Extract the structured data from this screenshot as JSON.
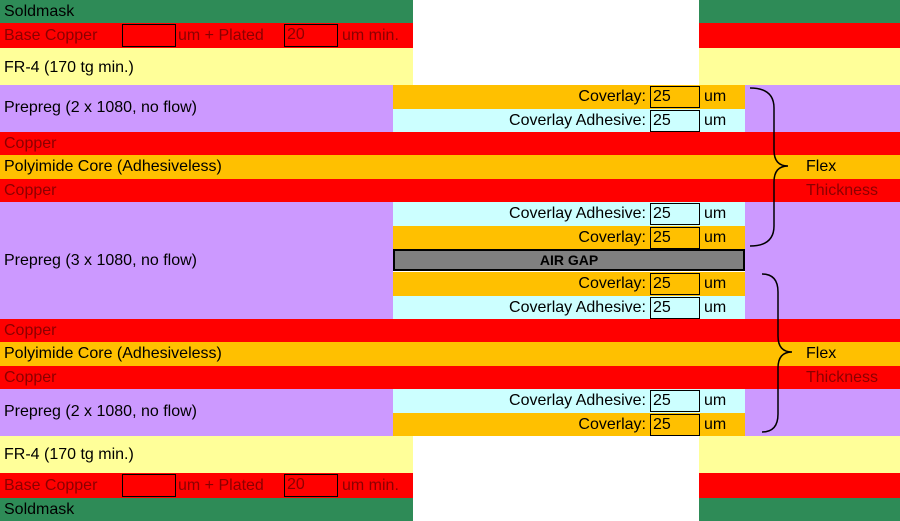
{
  "colors": {
    "soldmask": "#2e8b57",
    "copper": "#ff0000",
    "fr4": "#ffff99",
    "prepreg": "#cc99ff",
    "polyimide": "#ffc000",
    "coverlay": "#ffc000",
    "coverlay_adhesive": "#ccffff",
    "air_gap": "#808080"
  },
  "top": {
    "soldmask": "Soldmask",
    "base_copper": {
      "label": "Base Copper",
      "value": "",
      "mid": "um +  Plated",
      "plated": "20",
      "suffix": "um min."
    },
    "fr4": "FR-4 (170 tg min.)",
    "prepreg": "Prepreg (2 x 1080, no flow)"
  },
  "flex1": {
    "copper_top": "Copper",
    "core": "Polyimide Core (Adhesiveless)",
    "copper_bottom": "Copper"
  },
  "middle_prepreg": "Prepreg (3 x 1080, no flow)",
  "flex2": {
    "copper_top": "Copper",
    "core": "Polyimide Core (Adhesiveless)",
    "copper_bottom": "Copper"
  },
  "bottom": {
    "prepreg": "Prepreg (2 x 1080, no flow)",
    "fr4": "FR-4 (170 tg min.)",
    "base_copper": {
      "label": "Base Copper",
      "value": "",
      "mid": "um +  Plated",
      "plated": "20",
      "suffix": "um min."
    },
    "soldmask": "Soldmask"
  },
  "coverlay_rows": [
    {
      "label": "Coverlay:",
      "value": "25",
      "unit": "um"
    },
    {
      "label": "Coverlay Adhesive:",
      "value": "25",
      "unit": "um"
    },
    {
      "label": "Coverlay Adhesive:",
      "value": "25",
      "unit": "um"
    },
    {
      "label": "Coverlay:",
      "value": "25",
      "unit": "um"
    },
    {
      "label": "Coverlay:",
      "value": "25",
      "unit": "um"
    },
    {
      "label": "Coverlay Adhesive:",
      "value": "25",
      "unit": "um"
    },
    {
      "label": "Coverlay Adhesive:",
      "value": "25",
      "unit": "um"
    },
    {
      "label": "Coverlay:",
      "value": "25",
      "unit": "um"
    }
  ],
  "air_gap": "AIR GAP",
  "flex_labels": [
    {
      "line1": "Flex",
      "line2": "Thickness"
    },
    {
      "line1": "Flex",
      "line2": "Thickness"
    }
  ]
}
